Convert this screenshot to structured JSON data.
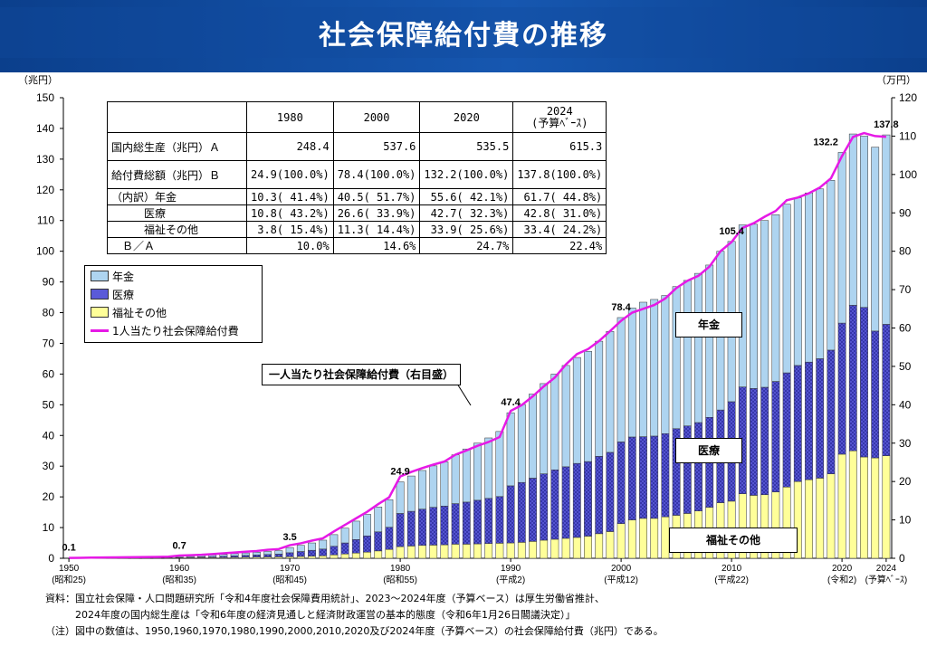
{
  "title": "社会保障給付費の推移",
  "left_unit": "（兆円）",
  "right_unit": "（万円）",
  "table": {
    "headers": [
      "",
      "1980",
      "2000",
      "2020",
      "2024\n(予算ﾍﾞｰｽ)"
    ],
    "rows": [
      [
        "国内総生産（兆円）Ａ",
        "248.4",
        "537.6",
        "535.5",
        "615.3"
      ],
      [
        "給付費総額（兆円）Ｂ",
        "24.9(100.0%)",
        "78.4(100.0%)",
        "132.2(100.0%)",
        "137.8(100.0%)"
      ],
      [
        "（内訳）年金",
        "10.3( 41.4%)",
        "40.5( 51.7%)",
        "55.6( 42.1%)",
        "61.7( 44.8%)"
      ],
      [
        "　　　医療",
        "10.8( 43.2%)",
        "26.6( 33.9%)",
        "42.7( 32.3%)",
        "42.8( 31.0%)"
      ],
      [
        "　　　福祉その他",
        "3.8( 15.4%)",
        "11.3( 14.4%)",
        "33.9( 25.6%)",
        "33.4( 24.2%)"
      ],
      [
        "　Ｂ／Ａ",
        "10.0%",
        "14.6%",
        "24.7%",
        "22.4%"
      ]
    ]
  },
  "legend": {
    "pension": "年金",
    "medical": "医療",
    "welfare": "福祉その他",
    "per_capita": "1人当たり社会保障給付費"
  },
  "callouts": {
    "per_capita_axis": "一人当たり社会保障給付費（右目盛）",
    "pension": "年金",
    "medical": "医療",
    "welfare": "福祉その他"
  },
  "source": [
    "資料：国立社会保障・人口問題研究所「令和4年度社会保障費用統計」、2023～2024年度（予算ベース）は厚生労働省推計、",
    "　　　2024年度の国内総生産は「令和6年度の経済見通しと経済財政運営の基本的態度（令和6年1月26日閣議決定）」",
    "（注）図中の数値は、1950,1960,1970,1980,1990,2000,2010,2020及び2024年度（予算ベース）の社会保障給付費（兆円）である。"
  ],
  "colors": {
    "pension": "#aed4f0",
    "medical": "#5a5ad8",
    "welfare": "#ffff99",
    "line": "#e619e6",
    "banner": "#124a9e"
  },
  "chart_data": {
    "type": "bar",
    "stacked": true,
    "categories": [
      "1950",
      "1951",
      "1952",
      "1953",
      "1954",
      "1955",
      "1956",
      "1957",
      "1958",
      "1959",
      "1960",
      "1961",
      "1962",
      "1963",
      "1964",
      "1965",
      "1966",
      "1967",
      "1968",
      "1969",
      "1970",
      "1971",
      "1972",
      "1973",
      "1974",
      "1975",
      "1976",
      "1977",
      "1978",
      "1979",
      "1980",
      "1981",
      "1982",
      "1983",
      "1984",
      "1985",
      "1986",
      "1987",
      "1988",
      "1989",
      "1990",
      "1991",
      "1992",
      "1993",
      "1994",
      "1995",
      "1996",
      "1997",
      "1998",
      "1999",
      "2000",
      "2001",
      "2002",
      "2003",
      "2004",
      "2005",
      "2006",
      "2007",
      "2008",
      "2009",
      "2010",
      "2011",
      "2012",
      "2013",
      "2014",
      "2015",
      "2016",
      "2017",
      "2018",
      "2019",
      "2020",
      "2021",
      "2022",
      "2023",
      "2024"
    ],
    "x_tick_labels": [
      {
        "year": "1950",
        "sub": "(昭和25)"
      },
      {
        "year": "1960",
        "sub": "(昭和35)"
      },
      {
        "year": "1970",
        "sub": "(昭和45)"
      },
      {
        "year": "1980",
        "sub": "(昭和55)"
      },
      {
        "year": "1990",
        "sub": "(平成2)"
      },
      {
        "year": "2000",
        "sub": "(平成12)"
      },
      {
        "year": "2010",
        "sub": "(平成22)"
      },
      {
        "year": "2020",
        "sub": "(令和2)"
      },
      {
        "year": "2024",
        "sub": "(予算ﾍﾞｰｽ)"
      }
    ],
    "series": [
      {
        "name": "福祉その他",
        "values": [
          0.05,
          0.07,
          0.08,
          0.09,
          0.1,
          0.11,
          0.12,
          0.13,
          0.14,
          0.15,
          0.16,
          0.18,
          0.2,
          0.23,
          0.26,
          0.3,
          0.34,
          0.38,
          0.42,
          0.46,
          0.5,
          0.6,
          0.7,
          0.8,
          1.1,
          1.4,
          1.7,
          2.0,
          2.4,
          2.9,
          3.8,
          4.0,
          4.2,
          4.3,
          4.4,
          4.6,
          4.6,
          4.7,
          4.8,
          4.9,
          5.0,
          5.2,
          5.5,
          5.9,
          6.2,
          6.5,
          6.8,
          7.2,
          8.0,
          8.7,
          11.3,
          12.5,
          13.0,
          13.0,
          13.5,
          14.0,
          14.6,
          15.4,
          16.6,
          18.1,
          18.6,
          21.0,
          20.5,
          20.7,
          21.6,
          23.2,
          25.0,
          25.6,
          26.1,
          27.5,
          33.9,
          35.0,
          33.0,
          32.7,
          33.4
        ]
      },
      {
        "name": "医療",
        "values": [
          0.03,
          0.04,
          0.05,
          0.06,
          0.07,
          0.08,
          0.09,
          0.1,
          0.12,
          0.14,
          0.16,
          0.2,
          0.25,
          0.3,
          0.4,
          0.5,
          0.6,
          0.7,
          0.8,
          0.9,
          1.3,
          1.6,
          1.9,
          2.2,
          2.8,
          3.6,
          4.4,
          5.3,
          6.2,
          7.2,
          10.8,
          11.3,
          11.8,
          12.3,
          12.6,
          13.2,
          13.7,
          14.2,
          14.7,
          15.2,
          18.6,
          19.5,
          20.6,
          21.6,
          22.6,
          23.3,
          24.1,
          24.3,
          25.2,
          25.8,
          26.6,
          27.0,
          26.6,
          26.8,
          27.1,
          28.2,
          28.5,
          28.8,
          29.3,
          30.2,
          32.4,
          34.8,
          34.8,
          35.0,
          36.0,
          37.2,
          37.8,
          38.3,
          38.9,
          40.3,
          42.7,
          47.4,
          48.7,
          41.3,
          42.8
        ]
      },
      {
        "name": "年金",
        "values": [
          0.02,
          0.02,
          0.03,
          0.03,
          0.04,
          0.04,
          0.05,
          0.05,
          0.06,
          0.06,
          0.38,
          0.4,
          0.45,
          0.5,
          0.6,
          0.7,
          0.8,
          0.9,
          1.0,
          1.1,
          1.7,
          2.0,
          2.4,
          2.9,
          3.8,
          4.8,
          6.0,
          7.0,
          8.1,
          9.0,
          10.3,
          11.5,
          12.6,
          13.5,
          14.4,
          15.9,
          17.3,
          18.6,
          19.7,
          21.2,
          23.8,
          25.4,
          27.4,
          29.4,
          31.2,
          33.0,
          34.5,
          35.9,
          37.5,
          39.4,
          40.5,
          42.0,
          43.8,
          44.5,
          45.0,
          46.3,
          47.4,
          48.6,
          49.6,
          51.7,
          52.2,
          52.8,
          53.5,
          54.3,
          54.3,
          54.9,
          54.6,
          55.1,
          55.3,
          55.3,
          55.6,
          55.8,
          55.8,
          59.9,
          61.7
        ]
      }
    ],
    "totals_labeled": {
      "1950": "0.1",
      "1960": "0.7",
      "1970": "3.5",
      "1980": "24.9",
      "1990": "47.4",
      "2000": "78.4",
      "2010": "105.4",
      "2020": "132.2",
      "2024": "137.8"
    },
    "per_capita_man_yen": [
      0.1,
      0.13,
      0.17,
      0.21,
      0.24,
      0.27,
      0.3,
      0.33,
      0.36,
      0.4,
      0.7,
      0.8,
      0.9,
      1.1,
      1.3,
      1.5,
      1.7,
      1.9,
      2.2,
      2.4,
      3.4,
      3.9,
      4.6,
      5.2,
      7.0,
      8.7,
      10.4,
      12.1,
      14.1,
      15.9,
      21.3,
      22.5,
      23.5,
      24.4,
      25.2,
      27.0,
      28.1,
      29.3,
      30.3,
      31.6,
      38.4,
      39.9,
      42.2,
      44.8,
      47.1,
      50.5,
      53.2,
      54.5,
      56.6,
      59.2,
      61.9,
      64.0,
      65.0,
      66.0,
      67.7,
      70.4,
      72.3,
      73.6,
      76.0,
      80.0,
      82.4,
      86.1,
      87.3,
      89.0,
      90.5,
      93.3,
      94.0,
      95.1,
      96.6,
      99.0,
      104.8,
      109.8,
      110.8,
      110.0,
      109.8
    ],
    "y_left": {
      "label": "（兆円）",
      "range": [
        0,
        150
      ],
      "step": 10
    },
    "y_right": {
      "label": "（万円）",
      "range": [
        0,
        120
      ],
      "step": 10
    },
    "grid": false,
    "legend_position": "upper-left"
  }
}
